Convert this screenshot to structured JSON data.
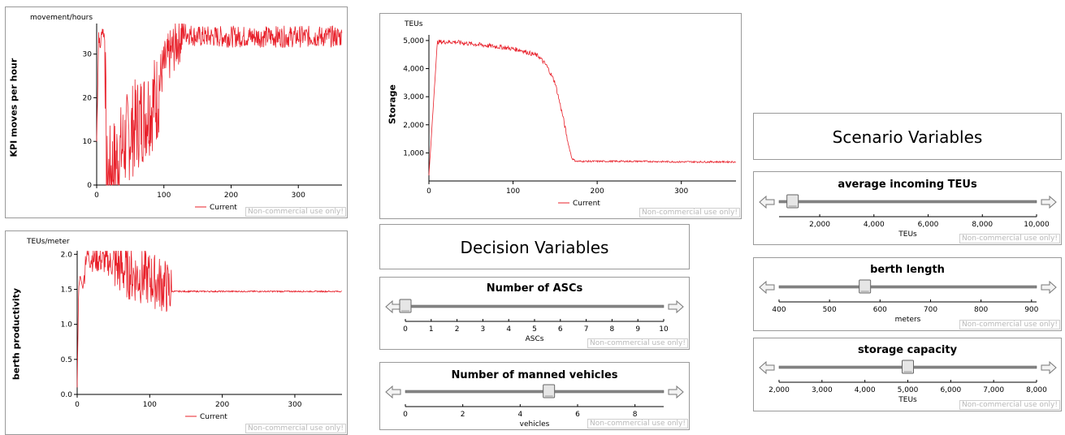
{
  "watermark": "Non-commercial use only!",
  "kpi_chart": {
    "ylabel": "KPI moves per hour",
    "unit": "movement/hours",
    "legend": "Current"
  },
  "berth_chart": {
    "ylabel": "berth productivity",
    "unit": "TEUs/meter",
    "legend": "Current"
  },
  "storage_chart": {
    "ylabel": "Storage",
    "unit": "TEUs",
    "legend": "Current"
  },
  "decision": {
    "title": "Decision Variables",
    "ascs": {
      "title": "Number of ASCs",
      "axis_label": "ASCs",
      "value": 0,
      "ticks": [
        "0",
        "1",
        "2",
        "3",
        "4",
        "5",
        "6",
        "7",
        "8",
        "9",
        "10"
      ]
    },
    "manned": {
      "title": "Number of manned vehicles",
      "axis_label": "vehicles",
      "value": 5,
      "ticks": [
        "0",
        "2",
        "4",
        "6",
        "8"
      ]
    }
  },
  "scenario": {
    "title": "Scenario Variables",
    "teus": {
      "title": "average incoming TEUs",
      "axis_label": "TEUs",
      "value": 1000,
      "ticks": [
        "2,000",
        "4,000",
        "6,000",
        "8,000",
        "10,000"
      ]
    },
    "berth": {
      "title": "berth length",
      "axis_label": "meters",
      "value": 570,
      "ticks": [
        "400",
        "500",
        "600",
        "700",
        "800",
        "900"
      ]
    },
    "storage": {
      "title": "storage capacity",
      "axis_label": "TEUs",
      "value": 5000,
      "ticks": [
        "2,000",
        "3,000",
        "4,000",
        "5,000",
        "6,000",
        "7,000",
        "8,000"
      ]
    }
  },
  "chart_data": [
    {
      "type": "line",
      "ylabel": "KPI moves per hour",
      "unit": "movement/hours",
      "xlim": [
        0,
        365
      ],
      "ylim": [
        0,
        37
      ],
      "xticks": [
        "0",
        "100",
        "200",
        "300"
      ],
      "yticks": [
        "0",
        "10",
        "20",
        "30"
      ],
      "series": [
        {
          "name": "Current",
          "x": [
            0,
            3,
            5,
            8,
            12,
            15,
            20,
            30,
            40,
            50,
            60,
            70,
            80,
            90,
            95,
            100,
            110,
            120,
            130,
            150,
            200,
            250,
            300,
            360
          ],
          "y": [
            10,
            35,
            31,
            36,
            34,
            1,
            3,
            6,
            9,
            12,
            14,
            16,
            18,
            20,
            25,
            27,
            30,
            33,
            35,
            34,
            34,
            34,
            34,
            34
          ]
        }
      ]
    },
    {
      "type": "line",
      "ylabel": "berth productivity",
      "unit": "TEUs/meter",
      "xlim": [
        0,
        365
      ],
      "ylim": [
        0,
        2.05
      ],
      "xticks": [
        "0",
        "100",
        "200",
        "300"
      ],
      "yticks": [
        "0.0",
        "0.5",
        "1.0",
        "1.5",
        "2.0"
      ],
      "series": [
        {
          "name": "Current",
          "x": [
            0,
            2,
            4,
            8,
            12,
            20,
            40,
            60,
            80,
            100,
            120,
            130,
            200,
            300,
            365
          ],
          "y": [
            0.1,
            1.5,
            1.7,
            1.5,
            2.0,
            1.95,
            1.9,
            1.8,
            1.7,
            1.65,
            1.55,
            1.47,
            1.47,
            1.47,
            1.47
          ]
        }
      ]
    },
    {
      "type": "line",
      "ylabel": "Storage",
      "unit": "TEUs",
      "xlim": [
        0,
        365
      ],
      "ylim": [
        0,
        5200
      ],
      "xticks": [
        "0",
        "100",
        "200",
        "300"
      ],
      "yticks": [
        "1,000",
        "2,000",
        "3,000",
        "4,000",
        "5,000"
      ],
      "series": [
        {
          "name": "Current",
          "x": [
            0,
            10,
            30,
            60,
            90,
            110,
            130,
            140,
            150,
            160,
            165,
            170,
            175,
            200,
            250,
            300,
            365
          ],
          "y": [
            200,
            4950,
            4950,
            4850,
            4750,
            4650,
            4450,
            4100,
            3500,
            2200,
            1400,
            800,
            700,
            700,
            700,
            680,
            680
          ]
        }
      ]
    }
  ]
}
